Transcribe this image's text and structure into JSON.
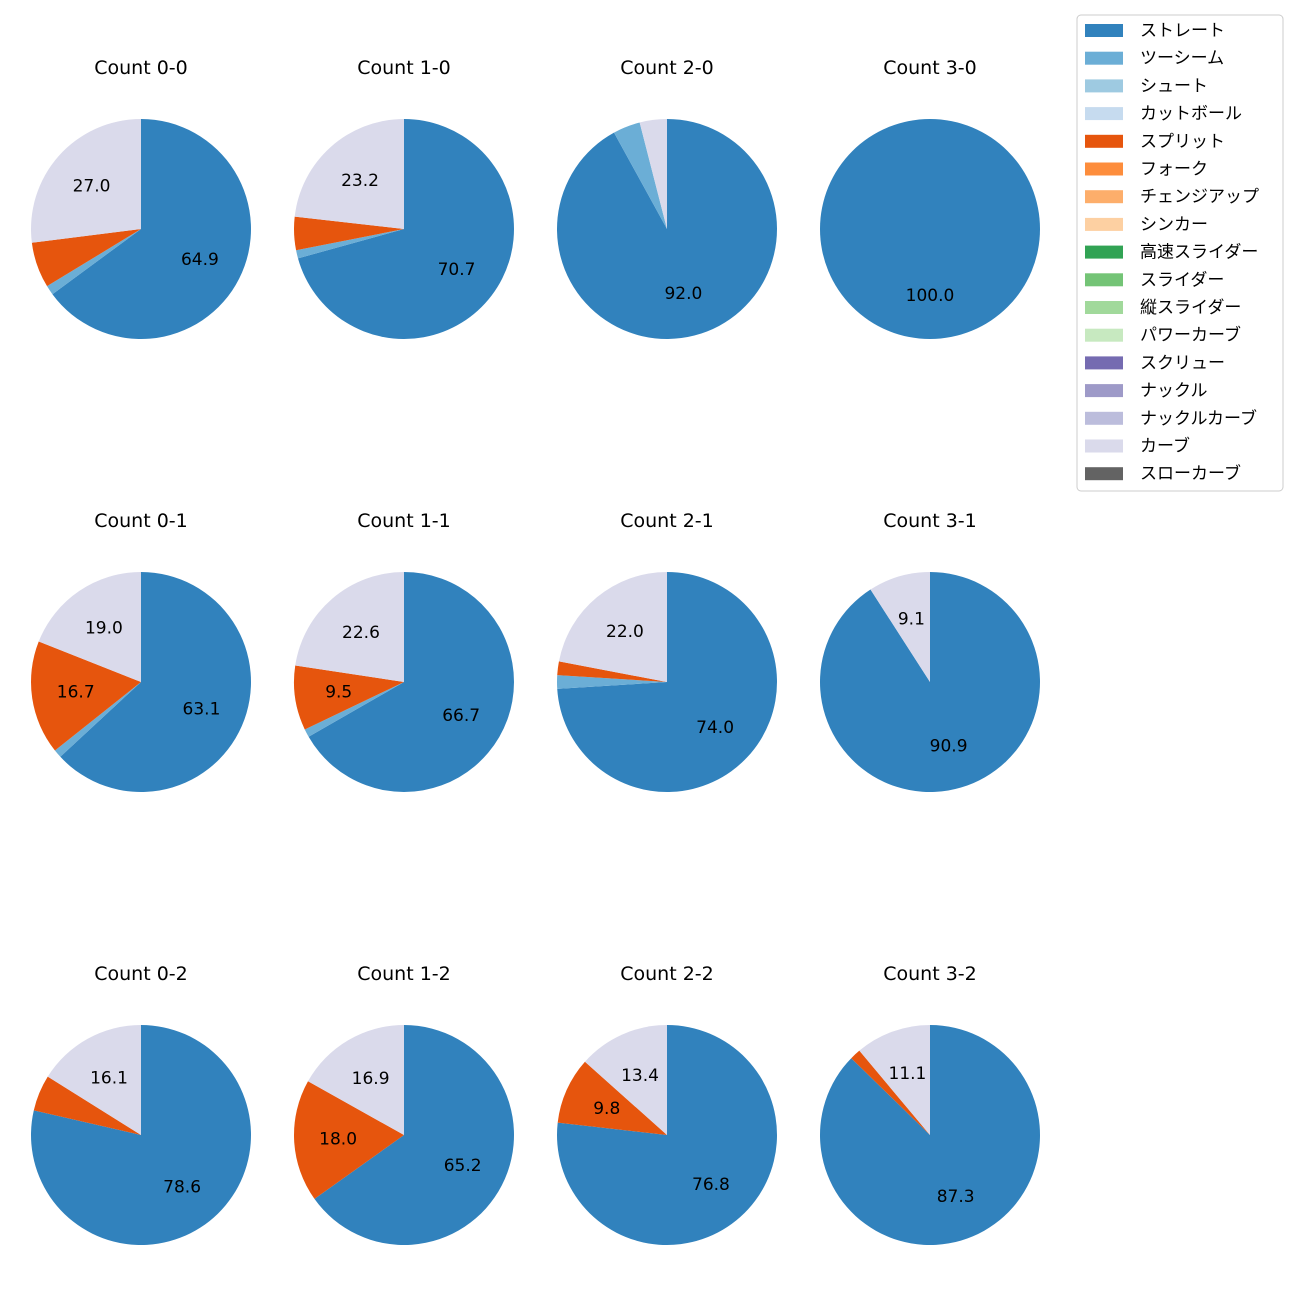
{
  "chart_data": {
    "type": "pie",
    "start_angle_deg": 90,
    "direction": "clockwise",
    "label_min_percent": 9,
    "legend_placement": "top-right",
    "legend": [
      {
        "name": "ストレート",
        "color": "#3182bd"
      },
      {
        "name": "ツーシーム",
        "color": "#6baed6"
      },
      {
        "name": "シュート",
        "color": "#9ecae1"
      },
      {
        "name": "カットボール",
        "color": "#c6dbef"
      },
      {
        "name": "スプリット",
        "color": "#e6550d"
      },
      {
        "name": "フォーク",
        "color": "#fd8d3c"
      },
      {
        "name": "チェンジアップ",
        "color": "#fdae6b"
      },
      {
        "name": "シンカー",
        "color": "#fdd0a2"
      },
      {
        "name": "高速スライダー",
        "color": "#31a354"
      },
      {
        "name": "スライダー",
        "color": "#74c476"
      },
      {
        "name": "縦スライダー",
        "color": "#a1d99b"
      },
      {
        "name": "パワーカーブ",
        "color": "#c7e9c0"
      },
      {
        "name": "スクリュー",
        "color": "#756bb1"
      },
      {
        "name": "ナックル",
        "color": "#9e9ac8"
      },
      {
        "name": "ナックルカーブ",
        "color": "#bcbddc"
      },
      {
        "name": "カーブ",
        "color": "#dadaeb"
      },
      {
        "name": "スローカーブ",
        "color": "#636363"
      }
    ],
    "pies": [
      {
        "title": "Count 0-0",
        "slices": [
          {
            "pitch": "ストレート",
            "value": 64.9
          },
          {
            "pitch": "ツーシーム",
            "value": 1.4
          },
          {
            "pitch": "スプリット",
            "value": 6.7
          },
          {
            "pitch": "カーブ",
            "value": 27.0
          }
        ]
      },
      {
        "title": "Count 1-0",
        "slices": [
          {
            "pitch": "ストレート",
            "value": 70.7
          },
          {
            "pitch": "ツーシーム",
            "value": 1.2
          },
          {
            "pitch": "スプリット",
            "value": 4.9
          },
          {
            "pitch": "カーブ",
            "value": 23.2
          }
        ]
      },
      {
        "title": "Count 2-0",
        "slices": [
          {
            "pitch": "ストレート",
            "value": 92.0
          },
          {
            "pitch": "ツーシーム",
            "value": 4.0
          },
          {
            "pitch": "カーブ",
            "value": 4.0
          }
        ]
      },
      {
        "title": "Count 3-0",
        "slices": [
          {
            "pitch": "ストレート",
            "value": 100.0
          }
        ]
      },
      {
        "title": "Count 0-1",
        "slices": [
          {
            "pitch": "ストレート",
            "value": 63.1
          },
          {
            "pitch": "ツーシーム",
            "value": 1.2
          },
          {
            "pitch": "スプリット",
            "value": 16.7
          },
          {
            "pitch": "カーブ",
            "value": 19.0
          }
        ]
      },
      {
        "title": "Count 1-1",
        "slices": [
          {
            "pitch": "ストレート",
            "value": 66.7
          },
          {
            "pitch": "ツーシーム",
            "value": 1.2
          },
          {
            "pitch": "スプリット",
            "value": 9.5
          },
          {
            "pitch": "カーブ",
            "value": 22.6
          }
        ]
      },
      {
        "title": "Count 2-1",
        "slices": [
          {
            "pitch": "ストレート",
            "value": 74.0
          },
          {
            "pitch": "ツーシーム",
            "value": 2.0
          },
          {
            "pitch": "スプリット",
            "value": 2.0
          },
          {
            "pitch": "カーブ",
            "value": 22.0
          }
        ]
      },
      {
        "title": "Count 3-1",
        "slices": [
          {
            "pitch": "ストレート",
            "value": 90.9
          },
          {
            "pitch": "カーブ",
            "value": 9.1
          }
        ]
      },
      {
        "title": "Count 0-2",
        "slices": [
          {
            "pitch": "ストレート",
            "value": 78.6
          },
          {
            "pitch": "スプリット",
            "value": 5.3
          },
          {
            "pitch": "カーブ",
            "value": 16.1
          }
        ]
      },
      {
        "title": "Count 1-2",
        "slices": [
          {
            "pitch": "ストレート",
            "value": 65.2
          },
          {
            "pitch": "スプリット",
            "value": 18.0
          },
          {
            "pitch": "カーブ",
            "value": 16.9
          }
        ]
      },
      {
        "title": "Count 2-2",
        "slices": [
          {
            "pitch": "ストレート",
            "value": 76.8
          },
          {
            "pitch": "スプリット",
            "value": 9.8
          },
          {
            "pitch": "カーブ",
            "value": 13.4
          }
        ]
      },
      {
        "title": "Count 3-2",
        "slices": [
          {
            "pitch": "ストレート",
            "value": 87.3
          },
          {
            "pitch": "スプリット",
            "value": 1.6
          },
          {
            "pitch": "カーブ",
            "value": 11.1
          }
        ]
      }
    ]
  }
}
